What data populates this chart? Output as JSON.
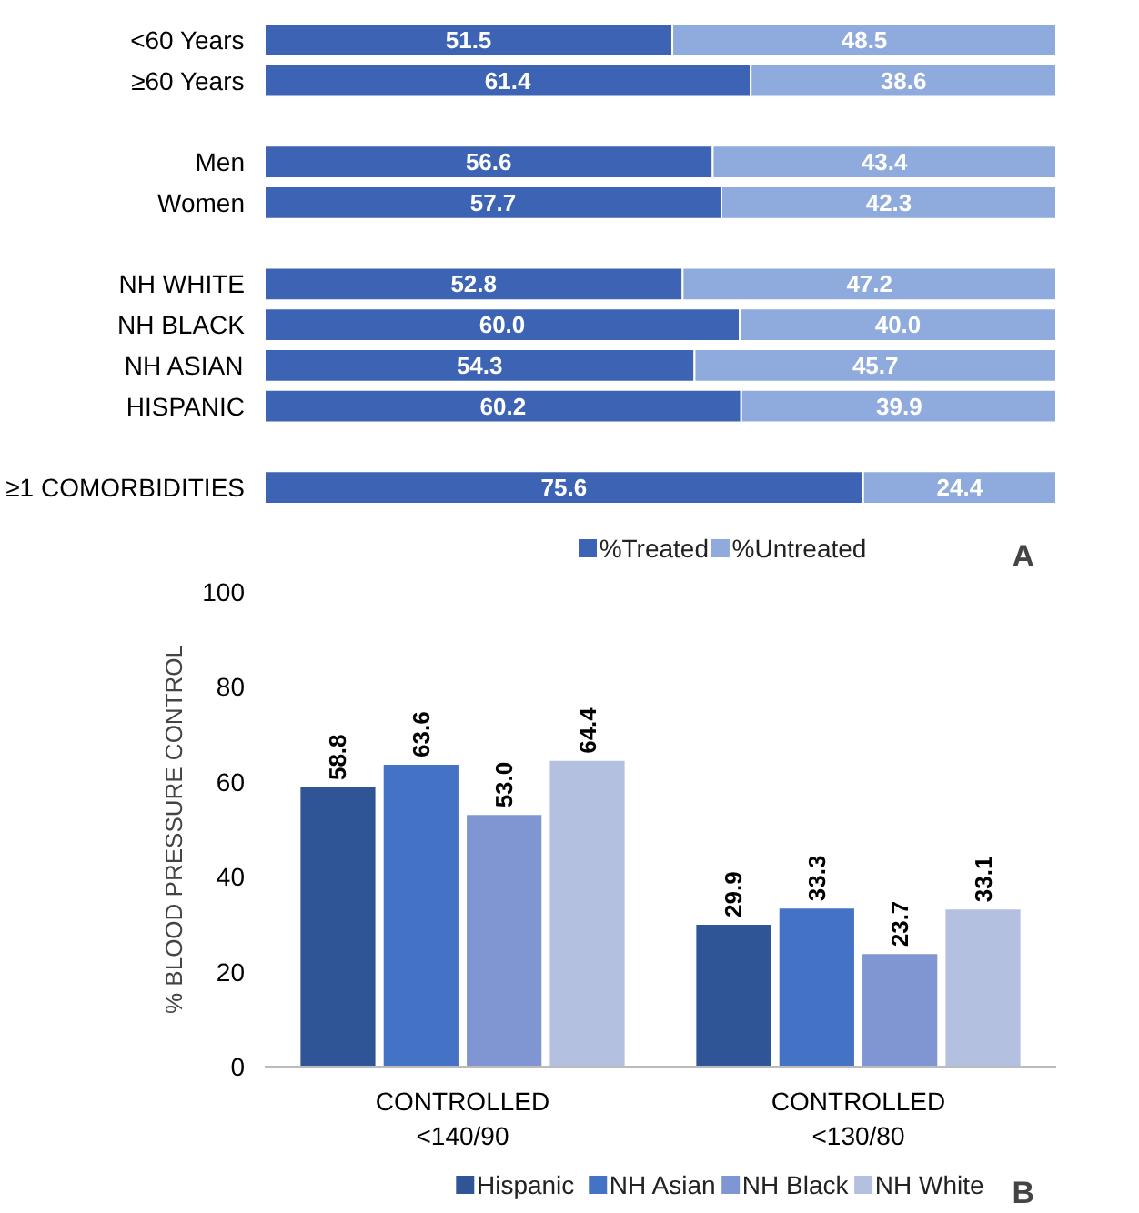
{
  "chart_data": [
    {
      "type": "bar",
      "orientation": "horizontal",
      "stacked": true,
      "data_labels": true,
      "legend": "bottom",
      "grid": false,
      "tick_labels": "y",
      "xlim": [
        0,
        100
      ],
      "categories": [
        "<60 Years",
        "≥60 Years",
        null,
        "Men",
        "Women",
        null,
        "NH WHITE",
        "NH BLACK",
        "NH ASIAN",
        "HISPANIC",
        null,
        "≥1 COMORBIDITIES"
      ],
      "series": [
        {
          "name": "%Treated",
          "color": "#3d63b5",
          "values": [
            51.5,
            61.4,
            null,
            56.6,
            57.7,
            null,
            52.8,
            60.0,
            54.3,
            60.2,
            null,
            75.6
          ],
          "value_labels": [
            "51.5",
            "61.4",
            null,
            "56.6",
            "57.7",
            null,
            "52.8",
            "60.0",
            "54.3",
            "60.2",
            null,
            "75.6"
          ]
        },
        {
          "name": "%Untreated",
          "color": "#8faadc",
          "values": [
            48.5,
            38.6,
            null,
            43.4,
            42.3,
            null,
            47.2,
            40.0,
            45.7,
            39.9,
            null,
            24.4
          ],
          "value_labels": [
            "48.5",
            "38.6",
            null,
            "43.4",
            "42.3",
            null,
            "47.2",
            "40.0",
            "45.7",
            "39.9",
            null,
            "24.4"
          ]
        }
      ],
      "annotations": [
        "A"
      ]
    },
    {
      "type": "bar",
      "data_labels": true,
      "legend": "bottom",
      "grid": false,
      "ylabel": "% BLOOD PRESSURE CONTROL",
      "ylim": [
        0,
        100
      ],
      "yticks": [
        0,
        20,
        40,
        60,
        80,
        100
      ],
      "categories": [
        "CONTROLLED\n<140/90",
        "CONTROLLED\n<130/80"
      ],
      "series": [
        {
          "name": "Hispanic",
          "color": "#2f5597",
          "values": [
            58.8,
            29.9
          ]
        },
        {
          "name": "NH Asian",
          "color": "#4472c4",
          "values": [
            63.6,
            33.3
          ]
        },
        {
          "name": "NH Black",
          "color": "#7f96d2",
          "values": [
            53.0,
            23.7
          ],
          "value_labels": [
            "53.0",
            "23.7"
          ]
        },
        {
          "name": "NH White",
          "color": "#b4c0e0",
          "values": [
            64.4,
            33.1
          ]
        }
      ],
      "annotations": [
        "B"
      ]
    }
  ]
}
